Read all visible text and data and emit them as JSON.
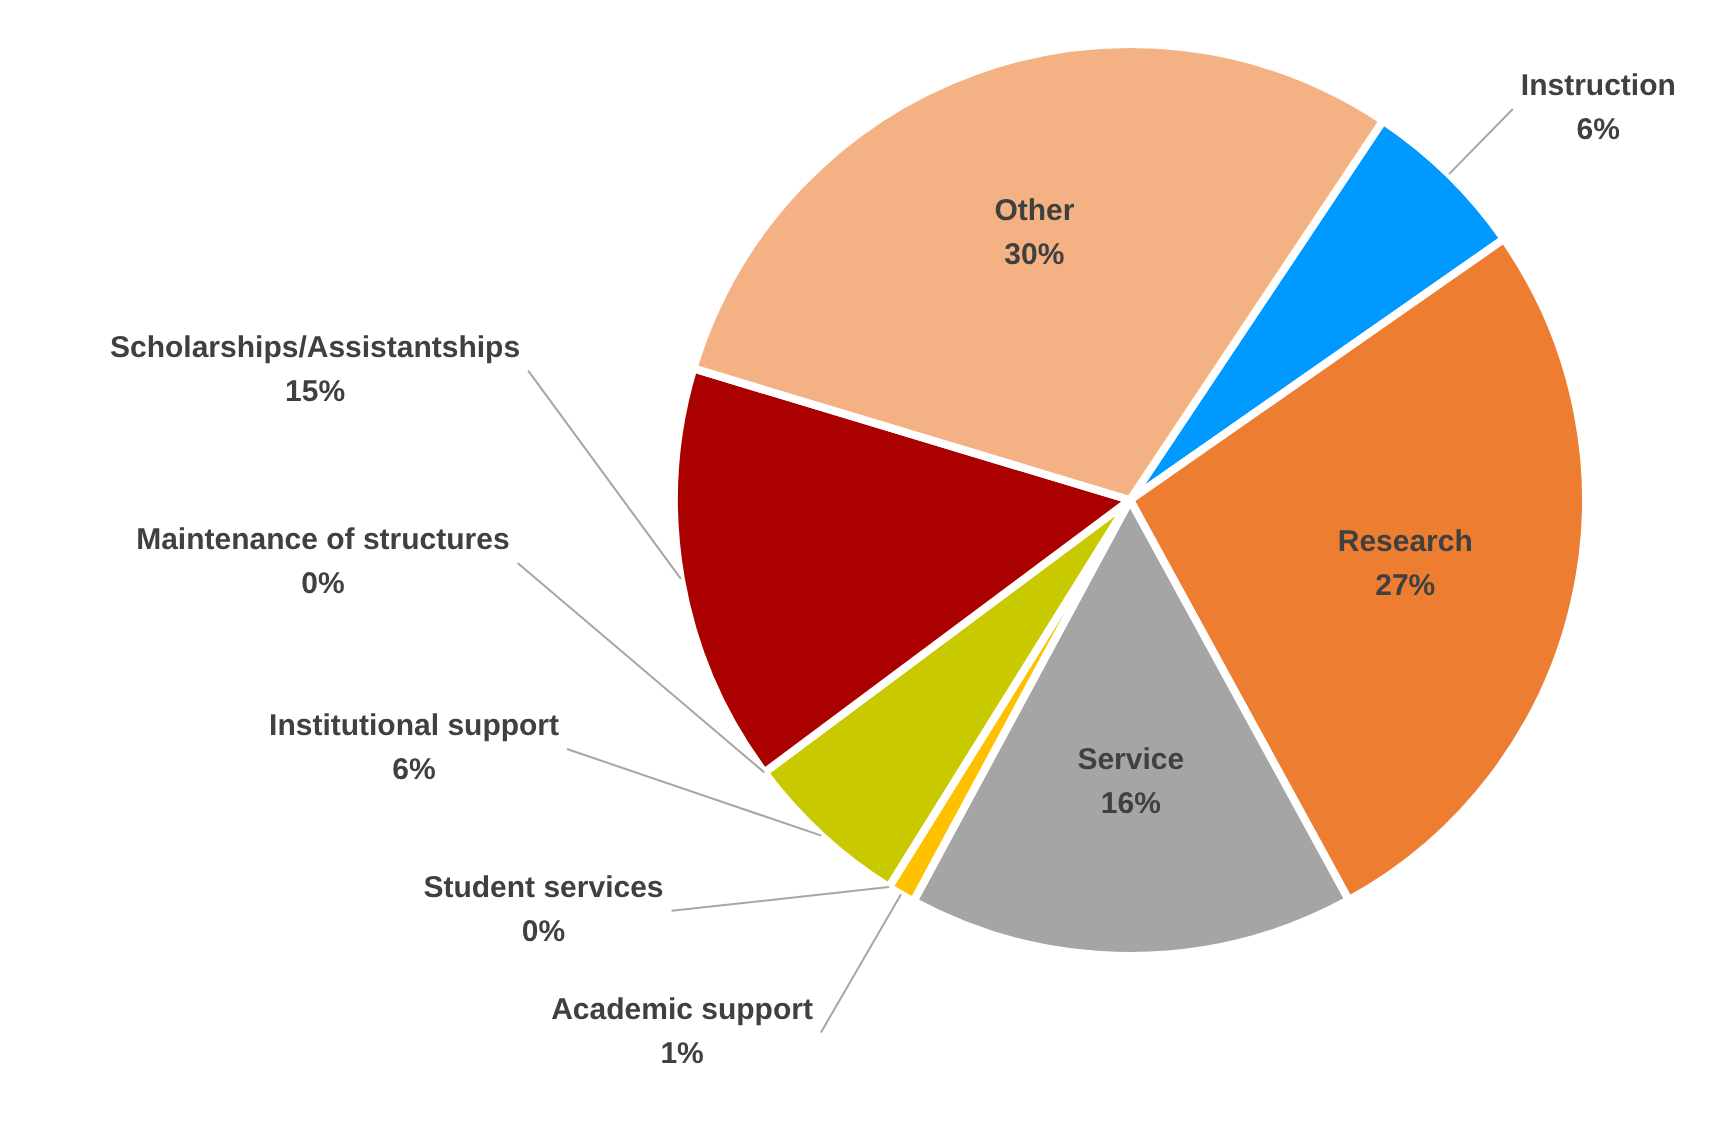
{
  "chart_data": {
    "type": "pie",
    "categories": [
      "Instruction",
      "Research",
      "Service",
      "Academic support",
      "Student services",
      "Institutional support",
      "Maintenance of structures",
      "Scholarships/Assistantships",
      "Other"
    ],
    "values": [
      6,
      27,
      16,
      1,
      0,
      6,
      0,
      15,
      30
    ],
    "colors": [
      "#0099ff",
      "#ed7d31",
      "#a5a5a5",
      "#ffc000",
      "#5b9bd5",
      "#c9c900",
      "#70ad47",
      "#aa0000",
      "#f4b183"
    ],
    "value_labels": [
      "6%",
      "27%",
      "16%",
      "1%",
      "0%",
      "6%",
      "0%",
      "15%",
      "30%"
    ]
  }
}
